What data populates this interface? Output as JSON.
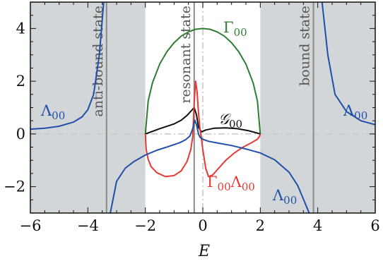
{
  "chart_data": {
    "type": "line",
    "xlabel": "E",
    "ylabel": "",
    "xlim": [
      -6,
      6
    ],
    "ylim": [
      -3,
      5
    ],
    "xticks": [
      "−6",
      "−4",
      "−2",
      "0",
      "2",
      "4",
      "6"
    ],
    "yticks": [
      "−2",
      "0",
      "2",
      "4"
    ],
    "shaded_regions": [
      [
        -6,
        -2
      ],
      [
        2,
        6
      ]
    ],
    "reference_lines": {
      "horizontal_y": 0,
      "vertical_x": 0,
      "style": "dash-dot",
      "color": "#c8c8c8"
    },
    "vertical_markers": [
      {
        "x": -3.35,
        "label": "anti-bound state"
      },
      {
        "x": -0.3,
        "label": "resonant state"
      },
      {
        "x": 3.85,
        "label": "bound state"
      }
    ],
    "annotations": [
      {
        "text": "Γ",
        "sub": "00",
        "series": "Gamma00"
      },
      {
        "text": "Λ",
        "sub": "00",
        "series": "Lambda00",
        "position": "left"
      },
      {
        "text": "Λ",
        "sub": "00",
        "series": "Lambda00",
        "position": "right"
      },
      {
        "text": "Λ",
        "sub": "00",
        "series": "Lambda00",
        "position": "bottom-right"
      },
      {
        "text": "𝒢",
        "sub": "00",
        "series": "G00"
      },
      {
        "text": "ΓΛ",
        "sub": "00",
        "series": "Gamma00Lambda00",
        "display": "Γ₀₀Λ₀₀"
      }
    ],
    "series": [
      {
        "id": "Gamma00",
        "color": "#2e7d32",
        "x": [
          -2.0,
          -1.9,
          -1.75,
          -1.5,
          -1.25,
          -1.0,
          -0.75,
          -0.5,
          -0.25,
          0.0,
          0.25,
          0.5,
          0.75,
          1.0,
          1.25,
          1.5,
          1.75,
          1.9,
          2.0
        ],
        "y": [
          0.0,
          1.25,
          1.94,
          2.65,
          3.12,
          3.46,
          3.71,
          3.87,
          3.97,
          4.0,
          3.97,
          3.87,
          3.71,
          3.46,
          3.12,
          2.65,
          1.94,
          1.25,
          0.0
        ]
      },
      {
        "id": "G00",
        "color": "#111111",
        "x": [
          -2.0,
          -1.5,
          -1.0,
          -0.75,
          -0.55,
          -0.4,
          -0.3,
          -0.22,
          -0.15,
          -0.05,
          0.1,
          0.4,
          0.8,
          1.2,
          1.6,
          2.0
        ],
        "y": [
          0.0,
          0.2,
          0.38,
          0.52,
          0.7,
          0.88,
          1.0,
          0.72,
          0.25,
          0.08,
          0.15,
          0.22,
          0.23,
          0.2,
          0.12,
          0.0
        ]
      },
      {
        "id": "Gamma00Lambda00",
        "color": "#e53935",
        "x": [
          -2.0,
          -1.97,
          -1.9,
          -1.8,
          -1.6,
          -1.3,
          -1.0,
          -0.75,
          -0.55,
          -0.42,
          -0.35,
          -0.3,
          -0.25,
          -0.2,
          -0.15,
          -0.1,
          -0.05,
          0.0,
          0.1,
          0.2,
          0.35,
          0.55,
          0.8,
          1.1,
          1.4,
          1.7,
          1.9,
          1.97,
          2.0
        ],
        "y": [
          0.0,
          -0.6,
          -0.96,
          -1.24,
          -1.47,
          -1.62,
          -1.58,
          -1.4,
          -1.05,
          -0.6,
          -0.1,
          1.2,
          2.0,
          1.6,
          0.8,
          0.2,
          -0.15,
          -0.6,
          -1.3,
          -1.62,
          -1.55,
          -1.3,
          -1.0,
          -0.72,
          -0.5,
          -0.33,
          -0.2,
          -0.1,
          0.0
        ]
      },
      {
        "id": "Lambda00",
        "color": "#1f4fa8",
        "segments": [
          {
            "x": [
              -6.0,
              -5.5,
              -5.0,
              -4.5,
              -4.2,
              -4.0,
              -3.8,
              -3.6,
              -3.45
            ],
            "y": [
              0.18,
              0.22,
              0.29,
              0.45,
              0.65,
              0.92,
              1.5,
              3.0,
              5.0
            ]
          },
          {
            "x": [
              -3.22,
              -3.0,
              -2.7,
              -2.4,
              -2.0,
              -1.6,
              -1.2,
              -0.8,
              -0.6,
              -0.45,
              -0.35,
              -0.28,
              -0.22,
              -0.15,
              -0.1,
              0.0,
              0.2,
              0.5,
              1.0,
              1.5,
              2.0,
              2.5,
              3.0,
              3.3,
              3.55,
              3.7
            ],
            "y": [
              -3.0,
              -1.8,
              -1.3,
              -1.05,
              -0.8,
              -0.62,
              -0.48,
              -0.33,
              -0.22,
              -0.08,
              0.2,
              0.52,
              0.35,
              0.0,
              -0.12,
              -0.2,
              -0.28,
              -0.34,
              -0.44,
              -0.57,
              -0.72,
              -0.98,
              -1.45,
              -1.95,
              -2.6,
              -3.0
            ]
          },
          {
            "x": [
              4.15,
              4.35,
              4.6,
              5.0,
              5.5,
              6.0
            ],
            "y": [
              5.0,
              3.0,
              1.5,
              0.85,
              0.5,
              0.35
            ]
          }
        ]
      }
    ]
  }
}
